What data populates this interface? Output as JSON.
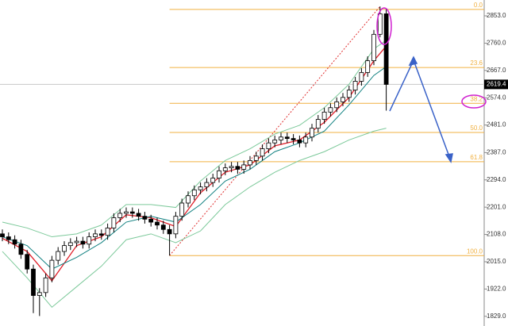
{
  "chart_data": {
    "type": "candlestick",
    "open": [
      2110,
      2100,
      2090,
      2075,
      2040,
      1990,
      1900,
      1910,
      1960,
      2020,
      2050,
      2070,
      2080,
      2085,
      2075,
      2100,
      2110,
      2105,
      2130,
      2165,
      2180,
      2185,
      2180,
      2170,
      2160,
      2150,
      2140,
      2125,
      2110,
      2170,
      2215,
      2240,
      2260,
      2270,
      2285,
      2300,
      2325,
      2335,
      2340,
      2330,
      2345,
      2360,
      2375,
      2400,
      2420,
      2430,
      2440,
      2435,
      2430,
      2420,
      2440,
      2470,
      2500,
      2525,
      2540,
      2560,
      2575,
      2600,
      2630,
      2660,
      2700,
      2790,
      2860
    ],
    "high": [
      2125,
      2115,
      2105,
      2090,
      2055,
      2005,
      1925,
      1975,
      2035,
      2065,
      2085,
      2095,
      2100,
      2100,
      2115,
      2125,
      2125,
      2145,
      2180,
      2195,
      2200,
      2200,
      2195,
      2185,
      2175,
      2165,
      2155,
      2140,
      2185,
      2230,
      2255,
      2275,
      2285,
      2300,
      2315,
      2340,
      2350,
      2355,
      2355,
      2360,
      2375,
      2390,
      2415,
      2435,
      2445,
      2455,
      2455,
      2450,
      2445,
      2455,
      2485,
      2515,
      2540,
      2555,
      2575,
      2590,
      2615,
      2645,
      2675,
      2715,
      2805,
      2885,
      2875
    ],
    "low": [
      2085,
      2075,
      2060,
      2025,
      1975,
      1840,
      1830,
      1895,
      1945,
      2005,
      2035,
      2055,
      2065,
      2060,
      2060,
      2085,
      2090,
      2090,
      2115,
      2150,
      2165,
      2165,
      2155,
      2145,
      2135,
      2125,
      2110,
      2036,
      2095,
      2155,
      2200,
      2225,
      2245,
      2255,
      2270,
      2285,
      2310,
      2320,
      2315,
      2315,
      2330,
      2345,
      2360,
      2385,
      2405,
      2415,
      2420,
      2415,
      2405,
      2405,
      2425,
      2455,
      2485,
      2510,
      2525,
      2545,
      2560,
      2585,
      2615,
      2645,
      2685,
      2780,
      2530
    ],
    "close": [
      2100,
      2090,
      2075,
      2040,
      1990,
      1900,
      1910,
      1960,
      2020,
      2050,
      2070,
      2080,
      2085,
      2075,
      2100,
      2110,
      2105,
      2130,
      2165,
      2180,
      2185,
      2180,
      2170,
      2160,
      2150,
      2140,
      2125,
      2110,
      2170,
      2215,
      2240,
      2260,
      2270,
      2285,
      2300,
      2325,
      2335,
      2340,
      2330,
      2345,
      2360,
      2375,
      2400,
      2420,
      2430,
      2440,
      2435,
      2430,
      2420,
      2440,
      2470,
      2500,
      2525,
      2540,
      2560,
      2575,
      2600,
      2630,
      2660,
      2700,
      2790,
      2860,
      2619.4
    ],
    "up_color": "#ffffff",
    "down_color": "#000000",
    "lines": [
      {
        "color": "#e0202a",
        "x": [
          0,
          4,
          8,
          12,
          16,
          20,
          24,
          28,
          32,
          36,
          40,
          44,
          48,
          52,
          56,
          60,
          62
        ],
        "values": [
          2095,
          2050,
          1950,
          2070,
          2100,
          2175,
          2165,
          2135,
          2250,
          2320,
          2345,
          2410,
          2430,
          2490,
          2575,
          2700,
          2750
        ]
      },
      {
        "color": "#108080",
        "x": [
          0,
          4,
          8,
          12,
          16,
          20,
          24,
          28,
          32,
          36,
          40,
          44,
          48,
          52,
          56,
          60,
          62
        ],
        "values": [
          2100,
          2070,
          1990,
          2030,
          2080,
          2150,
          2170,
          2150,
          2210,
          2290,
          2330,
          2390,
          2420,
          2460,
          2550,
          2650,
          2680
        ]
      },
      {
        "color": "#7cc99a",
        "x": [
          0,
          4,
          8,
          12,
          16,
          20,
          24,
          28,
          32,
          36,
          40,
          44,
          48,
          52,
          56,
          60,
          62
        ],
        "values": [
          2150,
          2130,
          2100,
          2110,
          2140,
          2210,
          2210,
          2200,
          2290,
          2360,
          2400,
          2450,
          2480,
          2540,
          2620,
          2740,
          2770
        ]
      },
      {
        "color": "#7cc99a",
        "x": [
          0,
          4,
          8,
          12,
          16,
          20,
          24,
          28,
          32,
          36,
          40,
          44,
          48,
          52,
          56,
          60,
          62
        ],
        "values": [
          2050,
          1960,
          1860,
          1930,
          2000,
          2090,
          2110,
          2080,
          2120,
          2210,
          2270,
          2320,
          2360,
          2390,
          2430,
          2460,
          2470
        ]
      }
    ],
    "fib_color": "#f0b040",
    "fib_levels": [
      {
        "name": "0.0",
        "value": 2875
      },
      {
        "name": "23.6",
        "value": 2677
      },
      {
        "name": "38.2",
        "value": 2555
      },
      {
        "name": "50.0",
        "value": 2455.5
      },
      {
        "name": "61.8",
        "value": 2356
      },
      {
        "name": "100.0",
        "value": 2036
      }
    ],
    "ylim": [
      1796,
      2907
    ],
    "yticks": [
      {
        "value": 2853,
        "label": "2853.0"
      },
      {
        "value": 2760,
        "label": "2760.0"
      },
      {
        "value": 2667,
        "label": "2667.0"
      },
      {
        "value": 2574,
        "label": "2574.0"
      },
      {
        "value": 2481,
        "label": "2481.0"
      },
      {
        "value": 2387,
        "label": "2387.0"
      },
      {
        "value": 2294,
        "label": "2294.0"
      },
      {
        "value": 2201,
        "label": "2201.0"
      },
      {
        "value": 2108,
        "label": "2108.0"
      },
      {
        "value": 2015,
        "label": "2015.0"
      },
      {
        "value": 1922,
        "label": "1922.0"
      },
      {
        "value": 1829,
        "label": "1829.0"
      }
    ]
  }
}
